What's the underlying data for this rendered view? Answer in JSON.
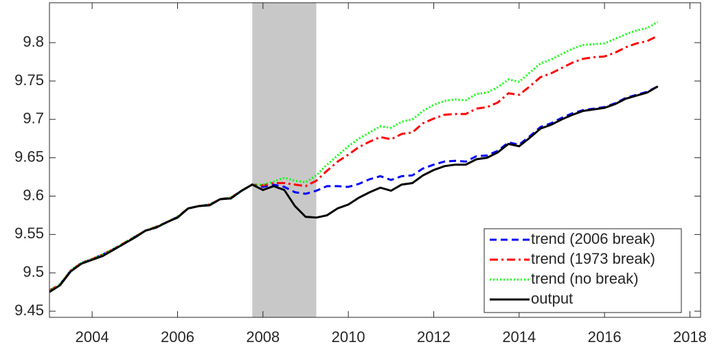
{
  "chart_data": {
    "type": "line",
    "x": [
      2003,
      2003.25,
      2003.5,
      2003.75,
      2004,
      2004.25,
      2004.5,
      2004.75,
      2005,
      2005.25,
      2005.5,
      2005.75,
      2006,
      2006.25,
      2006.5,
      2006.75,
      2007,
      2007.25,
      2007.5,
      2007.75,
      2008,
      2008.25,
      2008.5,
      2008.75,
      2009,
      2009.25,
      2009.5,
      2009.75,
      2010,
      2010.25,
      2010.5,
      2010.75,
      2011,
      2011.25,
      2011.5,
      2011.75,
      2012,
      2012.25,
      2012.5,
      2012.75,
      2013,
      2013.25,
      2013.5,
      2013.75,
      2014,
      2014.25,
      2014.5,
      2014.75,
      2015,
      2015.25,
      2015.5,
      2015.75,
      2016,
      2016.25,
      2016.5,
      2016.75,
      2017,
      2017.25
    ],
    "series": [
      {
        "name": "trend (2006 break)",
        "color": "#0000ff",
        "dash": "dashed",
        "values": [
          9.477,
          9.485,
          9.503,
          9.513,
          9.518,
          9.524,
          9.531,
          9.539,
          9.547,
          9.555,
          9.56,
          9.566,
          9.573,
          9.584,
          9.587,
          9.589,
          9.596,
          9.598,
          9.607,
          9.615,
          9.612,
          9.615,
          9.612,
          9.605,
          9.603,
          9.607,
          9.613,
          9.613,
          9.612,
          9.616,
          9.622,
          9.626,
          9.621,
          9.626,
          9.627,
          9.636,
          9.641,
          9.645,
          9.646,
          9.645,
          9.652,
          9.653,
          9.659,
          9.67,
          9.667,
          9.678,
          9.69,
          9.695,
          9.702,
          9.708,
          9.712,
          9.714,
          9.716,
          9.721,
          9.728,
          9.732,
          9.736,
          9.743
        ]
      },
      {
        "name": "trend (1973 break)",
        "color": "#ff0000",
        "dash": "dashdot",
        "values": [
          9.477,
          9.485,
          9.503,
          9.513,
          9.518,
          9.524,
          9.531,
          9.539,
          9.547,
          9.555,
          9.56,
          9.566,
          9.573,
          9.584,
          9.587,
          9.589,
          9.596,
          9.598,
          9.607,
          9.615,
          9.614,
          9.617,
          9.617,
          9.615,
          9.613,
          9.62,
          9.633,
          9.645,
          9.654,
          9.664,
          9.671,
          9.677,
          9.674,
          9.681,
          9.683,
          9.695,
          9.701,
          9.706,
          9.707,
          9.707,
          9.714,
          9.716,
          9.722,
          9.734,
          9.732,
          9.743,
          9.755,
          9.76,
          9.767,
          9.774,
          9.779,
          9.781,
          9.782,
          9.787,
          9.794,
          9.799,
          9.802,
          9.809
        ]
      },
      {
        "name": "trend (no break)",
        "color": "#00ff00",
        "dash": "dotted",
        "values": [
          9.477,
          9.485,
          9.503,
          9.513,
          9.518,
          9.524,
          9.531,
          9.539,
          9.547,
          9.555,
          9.56,
          9.566,
          9.573,
          9.584,
          9.587,
          9.589,
          9.596,
          9.598,
          9.607,
          9.615,
          9.615,
          9.619,
          9.624,
          9.62,
          9.618,
          9.627,
          9.641,
          9.653,
          9.665,
          9.675,
          9.683,
          9.691,
          9.689,
          9.697,
          9.7,
          9.711,
          9.719,
          9.724,
          9.726,
          9.725,
          9.733,
          9.735,
          9.742,
          9.752,
          9.749,
          9.761,
          9.773,
          9.778,
          9.785,
          9.792,
          9.797,
          9.798,
          9.799,
          9.805,
          9.811,
          9.816,
          9.819,
          9.827
        ]
      },
      {
        "name": "output",
        "color": "#000000",
        "dash": "solid",
        "values": [
          9.475,
          9.484,
          9.502,
          9.512,
          9.517,
          9.522,
          9.53,
          9.538,
          9.546,
          9.555,
          9.559,
          9.566,
          9.572,
          9.584,
          9.587,
          9.588,
          9.596,
          9.597,
          9.607,
          9.615,
          9.608,
          9.613,
          9.608,
          9.587,
          9.573,
          9.572,
          9.575,
          9.584,
          9.589,
          9.598,
          9.605,
          9.611,
          9.607,
          9.615,
          9.617,
          9.627,
          9.634,
          9.639,
          9.641,
          9.641,
          9.648,
          9.65,
          9.657,
          9.668,
          9.665,
          9.676,
          9.688,
          9.693,
          9.7,
          9.706,
          9.711,
          9.713,
          9.715,
          9.72,
          9.727,
          9.731,
          9.735,
          9.743
        ]
      }
    ],
    "shaded_regions": [
      [
        2007.75,
        2009.25
      ]
    ],
    "shade_color": "#c8c8c8",
    "xlim": [
      2003,
      2018.25
    ],
    "xticks": [
      2004,
      2006,
      2008,
      2010,
      2012,
      2014,
      2016,
      2018
    ],
    "ylim": [
      9.442,
      9.852
    ],
    "yticks": [
      9.45,
      9.5,
      9.55,
      9.6,
      9.65,
      9.7,
      9.75,
      9.8
    ],
    "grid": false,
    "legend": "lower right"
  }
}
